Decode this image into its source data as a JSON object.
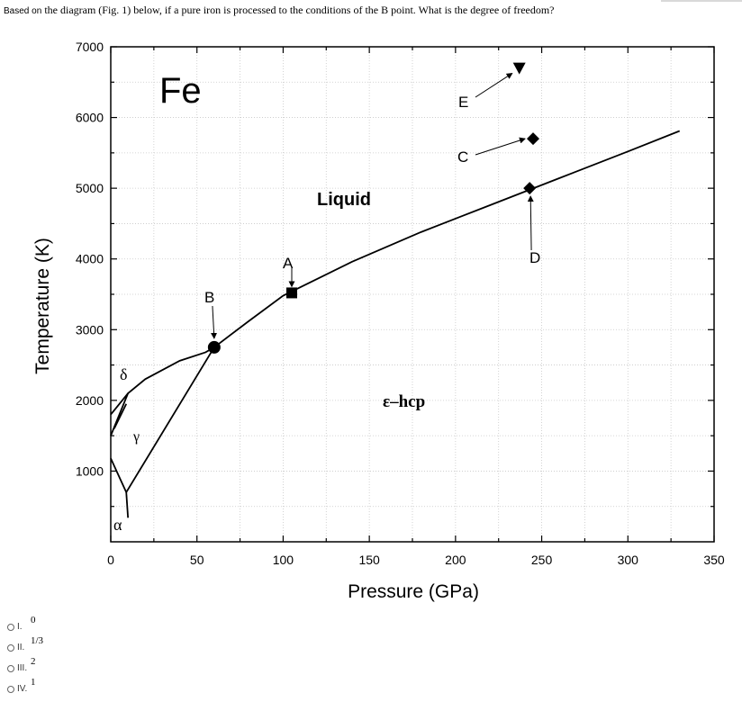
{
  "question": {
    "lead": "Based on",
    "text": "the diagram (Fig. 1) below, if a pure iron is processed to the conditions of the B point. What is the degree of freedom?"
  },
  "figure": {
    "element_label": "Fe",
    "region_labels": {
      "liquid": "Liquid",
      "hcp": "ε–hcp",
      "delta": "δ",
      "gamma": "γ",
      "alpha": "α"
    },
    "point_labels": {
      "A": "A",
      "B": "B",
      "C": "C",
      "D": "D",
      "E": "E"
    }
  },
  "chart_data": {
    "type": "line",
    "xlabel": "Pressure (GPa)",
    "ylabel": "Temperature (K)",
    "xlim": [
      0,
      350
    ],
    "ylim": [
      0,
      7000
    ],
    "xticks": [
      0,
      50,
      100,
      150,
      200,
      250,
      300,
      350
    ],
    "yticks": [
      1000,
      2000,
      3000,
      4000,
      5000,
      6000,
      7000
    ],
    "grid": true,
    "series": [
      {
        "x": [
          0,
          10,
          20,
          40,
          55,
          60,
          80,
          100,
          140,
          180,
          220,
          260,
          300,
          330
        ],
        "y": [
          1800,
          2100,
          2300,
          2560,
          2680,
          2750,
          3120,
          3480,
          3960,
          4380,
          4760,
          5140,
          5520,
          5810
        ]
      },
      {
        "x": [
          0,
          9,
          60
        ],
        "y": [
          1180,
          700,
          2750
        ]
      },
      {
        "x": [
          0,
          10
        ],
        "y": [
          1500,
          2100
        ]
      },
      {
        "x": [
          2,
          9
        ],
        "y": [
          1600,
          1950
        ]
      },
      {
        "x": [
          9,
          10
        ],
        "y": [
          700,
          340
        ]
      }
    ],
    "points": [
      {
        "label": "A",
        "x": 105,
        "y": 3520,
        "marker": "square"
      },
      {
        "label": "B",
        "x": 60,
        "y": 2750,
        "marker": "circle"
      },
      {
        "label": "C",
        "x": 245,
        "y": 5700,
        "marker": "diamond"
      },
      {
        "label": "D",
        "x": 243,
        "y": 5000,
        "marker": "diamond"
      },
      {
        "label": "E",
        "x": 237,
        "y": 6700,
        "marker": "triangle-down"
      }
    ]
  },
  "options": [
    {
      "roman": "I.",
      "value": "0"
    },
    {
      "roman": "II.",
      "value": "1/3"
    },
    {
      "roman": "III.",
      "value": "2"
    },
    {
      "roman": "IV.",
      "value": "1"
    }
  ]
}
